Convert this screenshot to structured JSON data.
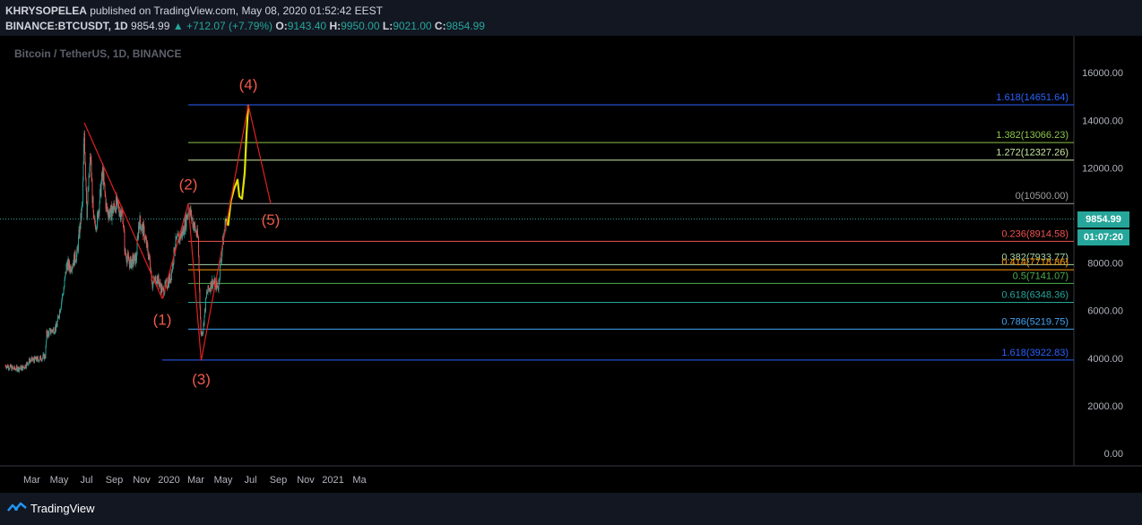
{
  "header": {
    "author": "KHRYSOPELEA",
    "published_text": "published on TradingView.com, May 08, 2020 01:52:42 EEST",
    "symbol": "BINANCE:BTCUSDT, 1D",
    "last": "9854.99",
    "change": "▲ +712.07 (+7.79%)",
    "o_label": "O:",
    "o_value": "9143.40",
    "h_label": "H:",
    "h_value": "9950.00",
    "l_label": "L:",
    "l_value": "9021.00",
    "c_label": "C:",
    "c_value": "9854.99"
  },
  "chart_subtitle": "Bitcoin / TetherUS, 1D, BINANCE",
  "price_badge": "9854.99",
  "time_badge": "01:07:20",
  "footer": {
    "brand": "TradingView",
    "logo_icon": "tradingview-logo-icon"
  },
  "colors": {
    "background": "#000000",
    "panel": "#131722",
    "up": "#26a69a",
    "down": "#ef5350",
    "wave_line": "#e02020",
    "projection": "#e0e000",
    "label": "#f0584a"
  },
  "chart_data": {
    "type": "candlestick",
    "title": "Bitcoin / TetherUS, 1D, BINANCE",
    "ylim": [
      0,
      16000
    ],
    "y_ticks": [
      "0.00",
      "2000.00",
      "4000.00",
      "6000.00",
      "8000.00",
      "10000.00",
      "12000.00",
      "14000.00",
      "16000.00"
    ],
    "x_ticks": [
      "Mar",
      "May",
      "Jul",
      "Sep",
      "Nov",
      "2020",
      "Mar",
      "May",
      "Jul",
      "Sep",
      "Nov",
      "2021",
      "Ma"
    ],
    "x_tick_dates": [
      "2019-03-01",
      "2019-05-01",
      "2019-07-01",
      "2019-09-01",
      "2019-11-01",
      "2020-01-01",
      "2020-03-01",
      "2020-05-01",
      "2020-07-01",
      "2020-09-01",
      "2020-11-01",
      "2021-01-01",
      "2021-03-01"
    ],
    "last_price": 9854.99,
    "price_path": [
      [
        "2019-01-01",
        3700
      ],
      [
        "2019-01-20",
        3550
      ],
      [
        "2019-02-10",
        3600
      ],
      [
        "2019-02-24",
        3900
      ],
      [
        "2019-03-15",
        3950
      ],
      [
        "2019-03-31",
        4100
      ],
      [
        "2019-04-03",
        5000
      ],
      [
        "2019-04-25",
        5300
      ],
      [
        "2019-05-12",
        7000
      ],
      [
        "2019-05-18",
        8000
      ],
      [
        "2019-05-25",
        7800
      ],
      [
        "2019-06-10",
        8400
      ],
      [
        "2019-06-22",
        10500
      ],
      [
        "2019-06-26",
        13500
      ],
      [
        "2019-07-02",
        10200
      ],
      [
        "2019-07-10",
        12500
      ],
      [
        "2019-07-17",
        9600
      ],
      [
        "2019-07-25",
        9800
      ],
      [
        "2019-08-06",
        11800
      ],
      [
        "2019-08-15",
        10200
      ],
      [
        "2019-08-25",
        10100
      ],
      [
        "2019-09-05",
        10500
      ],
      [
        "2019-09-20",
        10000
      ],
      [
        "2019-09-25",
        8400
      ],
      [
        "2019-10-06",
        8000
      ],
      [
        "2019-10-20",
        8200
      ],
      [
        "2019-10-26",
        9800
      ],
      [
        "2019-11-06",
        9300
      ],
      [
        "2019-11-20",
        8000
      ],
      [
        "2019-11-25",
        7100
      ],
      [
        "2019-12-05",
        7400
      ],
      [
        "2019-12-18",
        6800
      ],
      [
        "2020-01-05",
        7400
      ],
      [
        "2020-01-15",
        8800
      ],
      [
        "2020-02-01",
        9300
      ],
      [
        "2020-02-14",
        10300
      ],
      [
        "2020-02-24",
        9700
      ],
      [
        "2020-03-06",
        9000
      ],
      [
        "2020-03-12",
        5000
      ],
      [
        "2020-03-17",
        5200
      ],
      [
        "2020-03-25",
        6700
      ],
      [
        "2020-04-06",
        7200
      ],
      [
        "2020-04-20",
        7000
      ],
      [
        "2020-04-29",
        8700
      ],
      [
        "2020-05-07",
        9854.99
      ]
    ],
    "projection_path": [
      [
        "2020-05-07",
        9854.99
      ],
      [
        "2020-05-12",
        9600
      ],
      [
        "2020-05-18",
        10600
      ],
      [
        "2020-05-25",
        11100
      ],
      [
        "2020-06-02",
        11500
      ],
      [
        "2020-06-06",
        10800
      ],
      [
        "2020-06-12",
        10700
      ],
      [
        "2020-06-18",
        11800
      ],
      [
        "2020-06-22",
        13400
      ],
      [
        "2020-06-26",
        14650
      ]
    ],
    "wave_lines": [
      {
        "points": [
          [
            "2019-06-26",
            13900
          ],
          [
            "2019-12-17",
            6500
          ]
        ]
      },
      {
        "points": [
          [
            "2019-12-17",
            6500
          ],
          [
            "2020-02-13",
            10500
          ],
          [
            "2020-03-13",
            3900
          ],
          [
            "2020-06-26",
            14650
          ],
          [
            "2020-08-15",
            10500
          ]
        ]
      }
    ],
    "wave_labels": [
      {
        "text": "(1)",
        "date": "2019-12-17",
        "price": 5400
      },
      {
        "text": "(2)",
        "date": "2020-02-13",
        "price": 11100
      },
      {
        "text": "(3)",
        "date": "2020-03-13",
        "price": 2900
      },
      {
        "text": "(4)",
        "date": "2020-06-26",
        "price": 15300
      },
      {
        "text": "(5)",
        "date": "2020-08-15",
        "price": 9600
      }
    ],
    "fib_levels": [
      {
        "label": "1.618(14651.64)",
        "value": 14651.64,
        "color": "#2962ff",
        "start": "2020-02-13"
      },
      {
        "label": "1.382(13066.23)",
        "value": 13066.23,
        "color": "#8bc34a",
        "start": "2020-02-13"
      },
      {
        "label": "1.272(12327.26)",
        "value": 12327.26,
        "color": "#c8e6a0",
        "start": "2020-02-13"
      },
      {
        "label": "0(10500.00)",
        "value": 10500.0,
        "color": "#9e9e9e",
        "start": "2020-02-13"
      },
      {
        "label": "0.236(8914.58)",
        "value": 8914.58,
        "color": "#ef5350",
        "start": "2020-02-13"
      },
      {
        "label": "0.382(7933.77)",
        "value": 7933.77,
        "color": "#a5d6a7",
        "start": "2020-02-13"
      },
      {
        "label": "0.414(7718.86)",
        "value": 7718.86,
        "color": "#ff9800",
        "start": "2020-02-13"
      },
      {
        "label": "0.5(7141.07)",
        "value": 7141.07,
        "color": "#4caf50",
        "start": "2020-02-13"
      },
      {
        "label": "0.618(6348.36)",
        "value": 6348.36,
        "color": "#26a69a",
        "start": "2020-02-13"
      },
      {
        "label": "0.786(5219.75)",
        "value": 5219.75,
        "color": "#42a5f5",
        "start": "2020-02-13"
      },
      {
        "label": "1.618(3922.83)",
        "value": 3922.83,
        "color": "#2962ff",
        "start": "2019-12-17"
      }
    ]
  }
}
